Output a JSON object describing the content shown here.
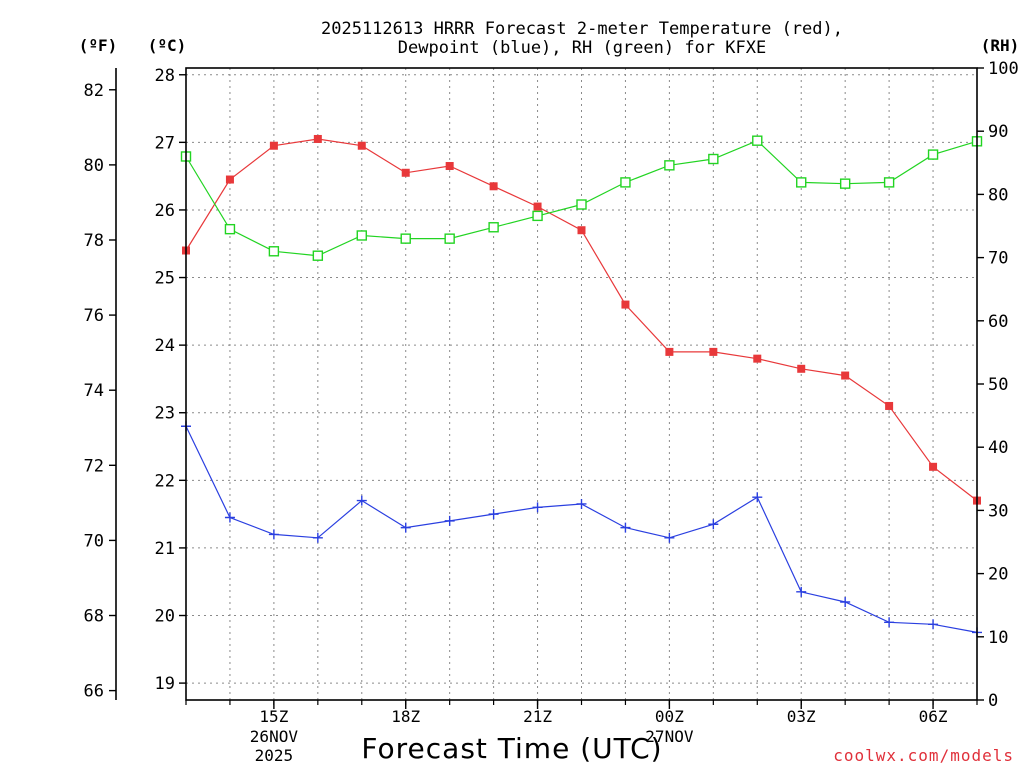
{
  "chart_data": {
    "type": "line",
    "title_line1": "2025112613 HRRR Forecast 2-meter Temperature (red),",
    "title_line2": "Dewpoint (blue), RH (green) for KFXE",
    "unit_f": "(ºF)",
    "unit_c": "(ºC)",
    "unit_rh": "(RH)",
    "xlabel": "Forecast Time (UTC)",
    "credit": "coolwx.com/models",
    "x_hours": [
      13,
      14,
      15,
      16,
      17,
      18,
      19,
      20,
      21,
      22,
      23,
      24,
      25,
      26,
      27,
      28,
      29,
      30,
      31
    ],
    "x_range": [
      13,
      31
    ],
    "x_ticks": [
      {
        "hour": 15,
        "label": "15Z",
        "sub": [
          "26NOV",
          "2025"
        ]
      },
      {
        "hour": 18,
        "label": "18Z",
        "sub": []
      },
      {
        "hour": 21,
        "label": "21Z",
        "sub": []
      },
      {
        "hour": 24,
        "label": "00Z",
        "sub": [
          "27NOV"
        ]
      },
      {
        "hour": 27,
        "label": "03Z",
        "sub": []
      },
      {
        "hour": 30,
        "label": "06Z",
        "sub": []
      }
    ],
    "celsius_range": [
      18.75,
      28.1
    ],
    "celsius_ticks": [
      19,
      20,
      21,
      22,
      23,
      24,
      25,
      26,
      27,
      28
    ],
    "fahrenheit_ticks": [
      66,
      68,
      70,
      72,
      74,
      76,
      78,
      80,
      82
    ],
    "rh_range": [
      0,
      100
    ],
    "rh_ticks": [
      0,
      10,
      20,
      30,
      40,
      50,
      60,
      70,
      80,
      90,
      100
    ],
    "series": [
      {
        "name": "2-meter Temperature",
        "color": "#e8383a",
        "axis": "celsius",
        "marker": "filled-square",
        "values": [
          25.4,
          26.45,
          26.95,
          27.05,
          26.95,
          26.55,
          26.65,
          26.35,
          26.05,
          25.7,
          24.6,
          23.9,
          23.9,
          23.8,
          23.65,
          23.55,
          23.1,
          22.2,
          21.7
        ]
      },
      {
        "name": "Dewpoint",
        "color": "#2a3fe0",
        "axis": "celsius",
        "marker": "plus",
        "values": [
          22.8,
          21.45,
          21.2,
          21.15,
          21.7,
          21.3,
          21.4,
          21.5,
          21.6,
          21.65,
          21.3,
          21.15,
          21.35,
          21.75,
          20.35,
          20.2,
          19.9,
          19.87,
          19.75
        ]
      },
      {
        "name": "Relative Humidity",
        "color": "#22d422",
        "axis": "rh",
        "marker": "open-square",
        "values": [
          86,
          74.5,
          71,
          70.3,
          73.5,
          73,
          73,
          74.8,
          76.6,
          78.4,
          81.9,
          84.6,
          85.6,
          88.5,
          81.9,
          81.7,
          81.9,
          86.3,
          88.4
        ]
      }
    ]
  }
}
